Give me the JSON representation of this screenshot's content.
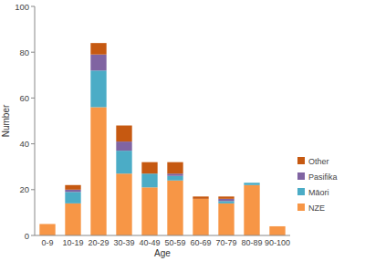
{
  "chart_data": {
    "type": "bar",
    "stacked": true,
    "x_label": "Age",
    "y_label": "Number",
    "categories": [
      "0-9",
      "10-19",
      "20-29",
      "30-39",
      "40-49",
      "50-59",
      "60-69",
      "70-79",
      "80-89",
      "90-100"
    ],
    "series": [
      {
        "name": "NZE",
        "color": "#f79646",
        "values": [
          5,
          14,
          56,
          27,
          21,
          24,
          16,
          14,
          22,
          4
        ]
      },
      {
        "name": "Māori",
        "color": "#4bacc6",
        "values": [
          0,
          5,
          16,
          10,
          6,
          2,
          0,
          1,
          1,
          0
        ]
      },
      {
        "name": "Pasifika",
        "color": "#8064a2",
        "values": [
          0,
          1,
          7,
          4,
          0,
          1,
          0,
          1,
          0,
          0
        ]
      },
      {
        "name": "Other",
        "color": "#c65911",
        "values": [
          0,
          2,
          5,
          7,
          5,
          5,
          1,
          1,
          0,
          0
        ]
      }
    ],
    "ylim": [
      0,
      100
    ],
    "yticks": [
      0,
      20,
      40,
      60,
      80,
      100
    ],
    "grid": false,
    "legend": "right"
  }
}
